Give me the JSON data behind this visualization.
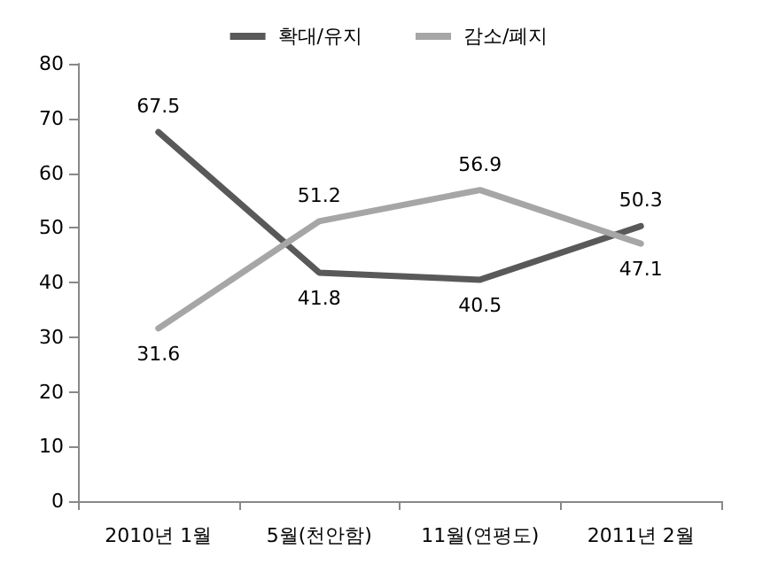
{
  "chart_data": {
    "type": "line",
    "categories": [
      "2010년 1월",
      "5월(천안함)",
      "11월(연평도)",
      "2011년 2월"
    ],
    "series": [
      {
        "name": "확대/유지",
        "color": "#595959",
        "values": [
          67.5,
          41.8,
          40.5,
          50.3
        ]
      },
      {
        "name": "감소/폐지",
        "color": "#a6a6a6",
        "values": [
          31.6,
          51.2,
          56.9,
          47.1
        ]
      }
    ],
    "ylim": [
      0,
      80
    ],
    "yticks": [
      0,
      10,
      20,
      30,
      40,
      50,
      60,
      70,
      80
    ],
    "grid": false,
    "legend": "top",
    "marker": "none",
    "line_style": "solid",
    "data_labels": true
  }
}
